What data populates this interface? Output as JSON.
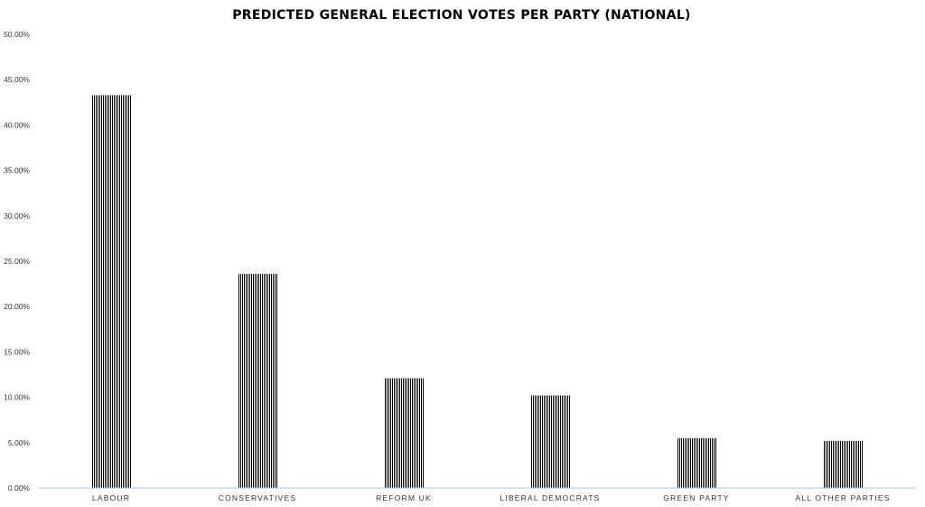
{
  "chart_data": {
    "type": "bar",
    "title": "PREDICTED GENERAL ELECTION VOTES PER PARTY (NATIONAL)",
    "xlabel": "",
    "ylabel": "",
    "categories": [
      "LABOUR",
      "CONSERVATIVES",
      "REFORM UK",
      "LIBERAL DEMOCRATS",
      "GREEN PARTY",
      "ALL OTHER PARTIES"
    ],
    "values": [
      43.3,
      23.6,
      12.1,
      10.2,
      5.5,
      5.2
    ],
    "ylim": [
      0,
      50
    ],
    "y_ticks": [
      "0.00%",
      "5.00%",
      "10.00%",
      "15.00%",
      "20.00%",
      "25.00%",
      "30.00%",
      "35.00%",
      "40.00%",
      "45.00%",
      "50.00%"
    ],
    "grid": false,
    "legend": "none",
    "bar_fill": "vertical-hatch",
    "colors": {
      "bar_stripe": "#000000",
      "bar_background": "#ffffff",
      "axis_line": "#a6c8e0"
    }
  }
}
